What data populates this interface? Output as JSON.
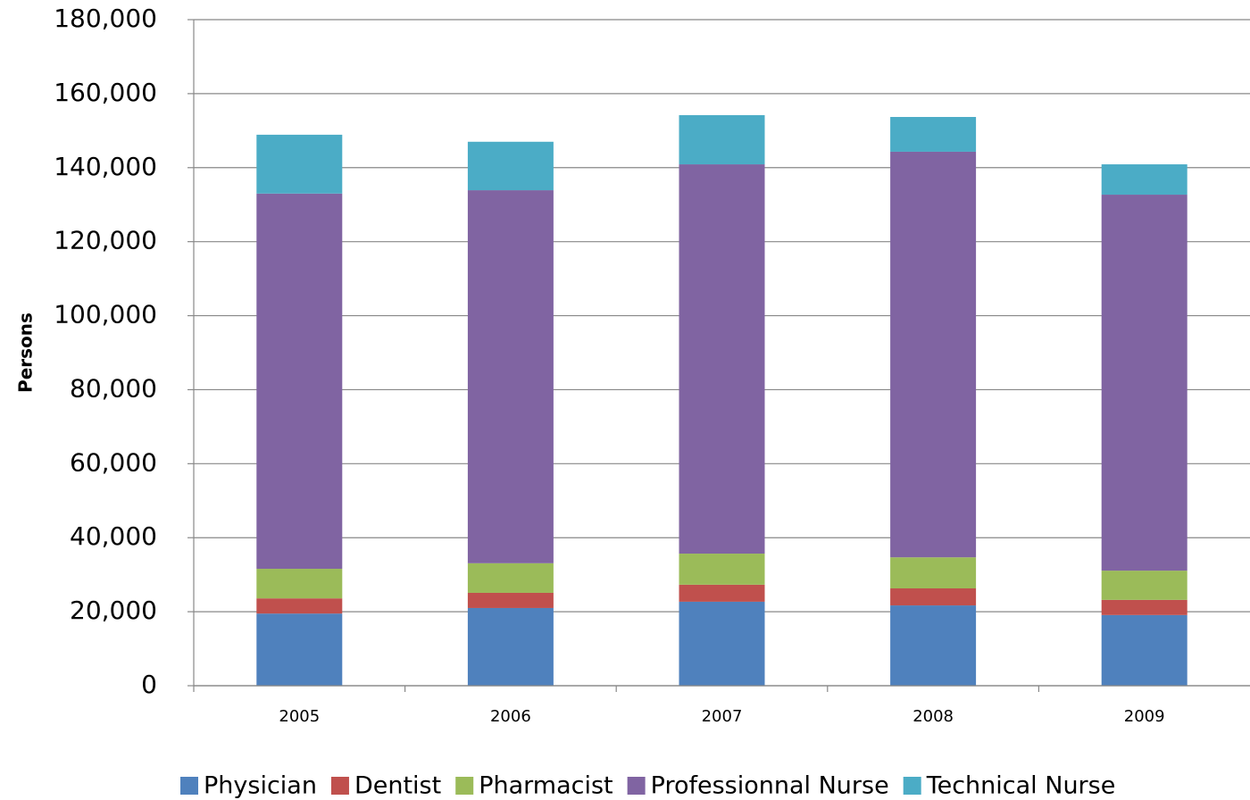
{
  "chart_data": {
    "type": "bar",
    "stacked": true,
    "y_label": "Persons",
    "categories": [
      "2005",
      "2006",
      "2007",
      "2008",
      "2009"
    ],
    "series": [
      {
        "name": "Physician",
        "color": "#4f81bd",
        "values": [
          19500,
          21000,
          22700,
          21700,
          19100
        ]
      },
      {
        "name": "Dentist",
        "color": "#c0504d",
        "values": [
          4100,
          4100,
          4600,
          4600,
          4100
        ]
      },
      {
        "name": "Pharmacist",
        "color": "#9bbb59",
        "values": [
          8000,
          8000,
          8400,
          8400,
          7900
        ]
      },
      {
        "name": "Professionnal Nurse",
        "color": "#8064a2",
        "values": [
          101400,
          100800,
          105200,
          109600,
          101600
        ]
      },
      {
        "name": "Technical Nurse",
        "color": "#4bacc6",
        "values": [
          15900,
          13100,
          13300,
          9400,
          8200
        ]
      }
    ],
    "ylim": [
      0,
      180000
    ],
    "yticks": [
      0,
      {
        "value": 20000,
        "label": "20,000"
      },
      {
        "value": 40000,
        "label": "40,000"
      },
      {
        "value": 60000,
        "label": "60,000"
      },
      {
        "value": 80000,
        "label": "80,000"
      },
      {
        "value": 100000,
        "label": "100,000"
      },
      {
        "value": 120000,
        "label": "120,000"
      },
      {
        "value": 140000,
        "label": "140,000"
      },
      {
        "value": 160000,
        "label": "160,000"
      },
      {
        "value": 180000,
        "label": "180,000"
      }
    ],
    "grid": true,
    "legend": "bottom"
  }
}
